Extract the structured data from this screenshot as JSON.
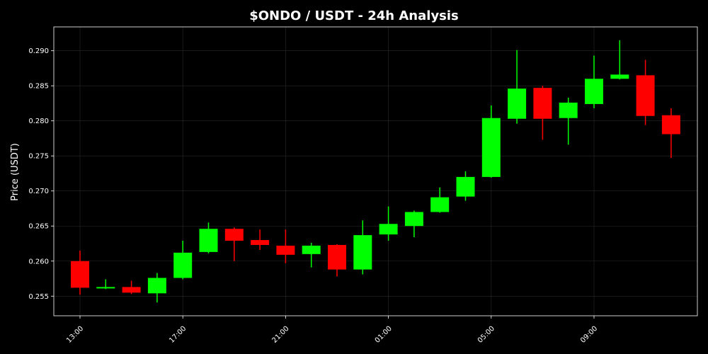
{
  "chart_data": {
    "type": "candlestick",
    "title": "$ONDO / USDT - 24h Analysis",
    "xlabel": "",
    "ylabel": "Price (USDT)",
    "ylim": [
      0.2522,
      0.2934
    ],
    "y_ticks": [
      "0.255",
      "0.260",
      "0.265",
      "0.270",
      "0.275",
      "0.280",
      "0.285",
      "0.290"
    ],
    "x_ticks": [
      "13:00",
      "17:00",
      "21:00",
      "01:00",
      "05:00",
      "09:00"
    ],
    "x_tick_hours": [
      13,
      17,
      21,
      25,
      29,
      33
    ],
    "grid": true,
    "colors": {
      "up": "#00ff00",
      "down": "#ff0000",
      "background": "#000000",
      "axes": "#ffffff"
    },
    "candles": [
      {
        "time": "13:00",
        "open": 0.26,
        "high": 0.2615,
        "low": 0.2552,
        "close": 0.2562
      },
      {
        "time": "14:00",
        "open": 0.2561,
        "high": 0.2574,
        "low": 0.256,
        "close": 0.2563
      },
      {
        "time": "15:00",
        "open": 0.2563,
        "high": 0.2572,
        "low": 0.2553,
        "close": 0.2555
      },
      {
        "time": "16:00",
        "open": 0.2554,
        "high": 0.2583,
        "low": 0.2541,
        "close": 0.2576
      },
      {
        "time": "17:00",
        "open": 0.2576,
        "high": 0.2629,
        "low": 0.2574,
        "close": 0.2612
      },
      {
        "time": "18:00",
        "open": 0.2613,
        "high": 0.2655,
        "low": 0.2611,
        "close": 0.2646
      },
      {
        "time": "19:00",
        "open": 0.2646,
        "high": 0.2648,
        "low": 0.26,
        "close": 0.2629
      },
      {
        "time": "20:00",
        "open": 0.263,
        "high": 0.2645,
        "low": 0.2616,
        "close": 0.2623
      },
      {
        "time": "21:00",
        "open": 0.2622,
        "high": 0.2645,
        "low": 0.2597,
        "close": 0.2609
      },
      {
        "time": "22:00",
        "open": 0.261,
        "high": 0.2626,
        "low": 0.2591,
        "close": 0.2622
      },
      {
        "time": "23:00",
        "open": 0.2623,
        "high": 0.2624,
        "low": 0.2578,
        "close": 0.2588
      },
      {
        "time": "00:00",
        "open": 0.2588,
        "high": 0.2658,
        "low": 0.2581,
        "close": 0.2637
      },
      {
        "time": "01:00",
        "open": 0.2638,
        "high": 0.2678,
        "low": 0.2629,
        "close": 0.2653
      },
      {
        "time": "02:00",
        "open": 0.265,
        "high": 0.2672,
        "low": 0.2634,
        "close": 0.267
      },
      {
        "time": "03:00",
        "open": 0.267,
        "high": 0.2705,
        "low": 0.2669,
        "close": 0.2691
      },
      {
        "time": "04:00",
        "open": 0.2692,
        "high": 0.2728,
        "low": 0.2686,
        "close": 0.272
      },
      {
        "time": "05:00",
        "open": 0.272,
        "high": 0.2822,
        "low": 0.2719,
        "close": 0.2804
      },
      {
        "time": "06:00",
        "open": 0.2803,
        "high": 0.2901,
        "low": 0.2796,
        "close": 0.2846
      },
      {
        "time": "07:00",
        "open": 0.2847,
        "high": 0.285,
        "low": 0.2773,
        "close": 0.2803
      },
      {
        "time": "08:00",
        "open": 0.2804,
        "high": 0.2833,
        "low": 0.2766,
        "close": 0.2826
      },
      {
        "time": "09:00",
        "open": 0.2824,
        "high": 0.2893,
        "low": 0.2818,
        "close": 0.286
      },
      {
        "time": "10:00",
        "open": 0.286,
        "high": 0.2915,
        "low": 0.2859,
        "close": 0.2866
      },
      {
        "time": "11:00",
        "open": 0.2865,
        "high": 0.2887,
        "low": 0.2794,
        "close": 0.2807
      },
      {
        "time": "12:00",
        "open": 0.2808,
        "high": 0.2818,
        "low": 0.2747,
        "close": 0.2781
      }
    ]
  }
}
